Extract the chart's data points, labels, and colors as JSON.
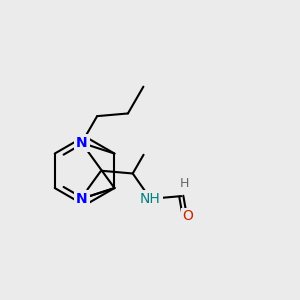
{
  "bg_color": "#ebebeb",
  "bond_color": "#000000",
  "N_color": "#0000ff",
  "O_color": "#cc2200",
  "NH_color": "#008080",
  "line_width": 1.5,
  "font_size": 10,
  "fig_width": 3.0,
  "fig_height": 3.0,
  "xlim": [
    -2.5,
    2.5
  ],
  "ylim": [
    -2.0,
    2.5
  ]
}
